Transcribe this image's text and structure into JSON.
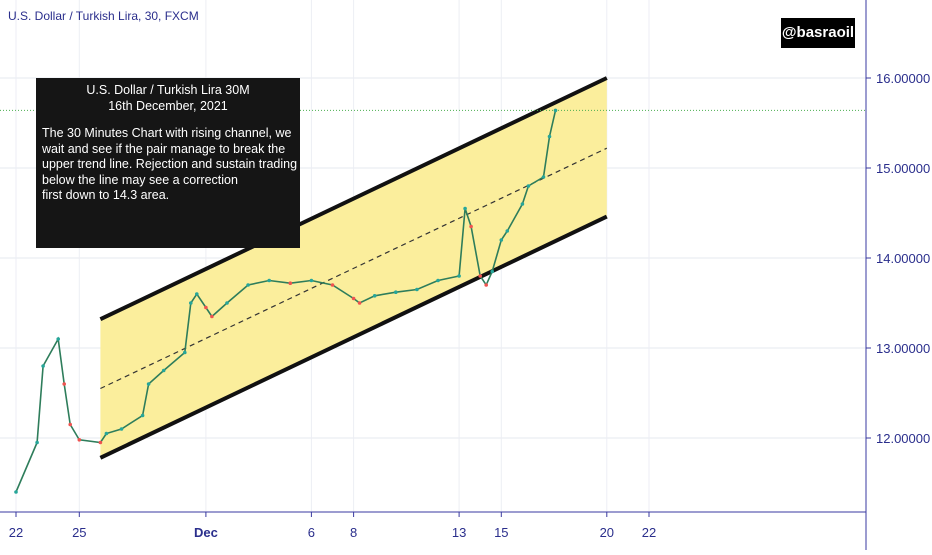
{
  "header": {
    "symbol_title": "U.S. Dollar / Turkish Lira, 30, FXCM",
    "watermark": "@basraoil"
  },
  "note": {
    "title": "U.S. Dollar / Turkish Lira 30M",
    "date": "16th December, 2021",
    "lines": [
      "The 30 Minutes Chart with rising channel, we",
      "wait and see if the pair manage to break the",
      "upper trend line. Rejection and sustain trading",
      "below the line may see a correction",
      "first down to 14.3 area."
    ]
  },
  "colors": {
    "channel_fill": "#fbee9c",
    "channel_border": "#111111",
    "candle_up": "#26a69a",
    "candle_down": "#ef5350",
    "axis": "#3a3aa0",
    "price_line": "#4caf50"
  },
  "chart_data": {
    "type": "line",
    "title": "U.S. Dollar / Turkish Lira, 30, FXCM",
    "xlabel": "",
    "ylabel": "",
    "ylim": [
      11.35,
      16.9
    ],
    "yticks": [
      "16.00000",
      "15.00000",
      "14.00000",
      "13.00000",
      "12.00000"
    ],
    "ytick_values": [
      16,
      15,
      14,
      13,
      12
    ],
    "xticks": [
      "22",
      "25",
      "Dec",
      "6",
      "8",
      "13",
      "15",
      "20",
      "22"
    ],
    "xtick_dates": [
      "2021-11-22",
      "2021-11-25",
      "2021-12-01",
      "2021-12-06",
      "2021-12-08",
      "2021-12-13",
      "2021-12-15",
      "2021-12-20",
      "2021-12-22"
    ],
    "grid": true,
    "last_price": 15.64,
    "channel": {
      "upper": [
        {
          "x": "2021-11-26",
          "y": 13.32
        },
        {
          "x": "2021-12-20",
          "y": 16.0
        }
      ],
      "middle": [
        {
          "x": "2021-11-26",
          "y": 12.55
        },
        {
          "x": "2021-12-20",
          "y": 15.22
        }
      ],
      "lower": [
        {
          "x": "2021-11-26",
          "y": 11.78
        },
        {
          "x": "2021-12-20",
          "y": 14.46
        }
      ]
    },
    "series": [
      {
        "values": [
          {
            "x": "2021-11-22",
            "y": 11.4
          },
          {
            "x": "2021-11-23",
            "y": 11.95
          },
          {
            "x": "2021-11-23",
            "y": 12.8
          },
          {
            "x": "2021-11-24",
            "y": 13.1
          },
          {
            "x": "2021-11-24",
            "y": 12.6
          },
          {
            "x": "2021-11-24",
            "y": 12.15
          },
          {
            "x": "2021-11-25",
            "y": 11.98
          },
          {
            "x": "2021-11-26",
            "y": 11.95
          },
          {
            "x": "2021-11-26",
            "y": 12.05
          },
          {
            "x": "2021-11-27",
            "y": 12.1
          },
          {
            "x": "2021-11-28",
            "y": 12.25
          },
          {
            "x": "2021-11-28",
            "y": 12.6
          },
          {
            "x": "2021-11-29",
            "y": 12.75
          },
          {
            "x": "2021-11-30",
            "y": 12.95
          },
          {
            "x": "2021-11-30",
            "y": 13.5
          },
          {
            "x": "2021-11-30",
            "y": 13.6
          },
          {
            "x": "2021-12-01",
            "y": 13.45
          },
          {
            "x": "2021-12-01",
            "y": 13.35
          },
          {
            "x": "2021-12-02",
            "y": 13.5
          },
          {
            "x": "2021-12-03",
            "y": 13.7
          },
          {
            "x": "2021-12-04",
            "y": 13.75
          },
          {
            "x": "2021-12-05",
            "y": 13.72
          },
          {
            "x": "2021-12-06",
            "y": 13.75
          },
          {
            "x": "2021-12-07",
            "y": 13.7
          },
          {
            "x": "2021-12-08",
            "y": 13.55
          },
          {
            "x": "2021-12-08",
            "y": 13.5
          },
          {
            "x": "2021-12-09",
            "y": 13.58
          },
          {
            "x": "2021-12-10",
            "y": 13.62
          },
          {
            "x": "2021-12-11",
            "y": 13.65
          },
          {
            "x": "2021-12-12",
            "y": 13.75
          },
          {
            "x": "2021-12-13",
            "y": 13.8
          },
          {
            "x": "2021-12-13",
            "y": 14.55
          },
          {
            "x": "2021-12-13",
            "y": 14.35
          },
          {
            "x": "2021-12-14",
            "y": 13.8
          },
          {
            "x": "2021-12-14",
            "y": 13.7
          },
          {
            "x": "2021-12-14",
            "y": 13.85
          },
          {
            "x": "2021-12-15",
            "y": 14.2
          },
          {
            "x": "2021-12-15",
            "y": 14.3
          },
          {
            "x": "2021-12-16",
            "y": 14.6
          },
          {
            "x": "2021-12-16",
            "y": 14.8
          },
          {
            "x": "2021-12-17",
            "y": 14.9
          },
          {
            "x": "2021-12-17",
            "y": 15.35
          },
          {
            "x": "2021-12-17",
            "y": 15.64
          }
        ]
      }
    ]
  }
}
